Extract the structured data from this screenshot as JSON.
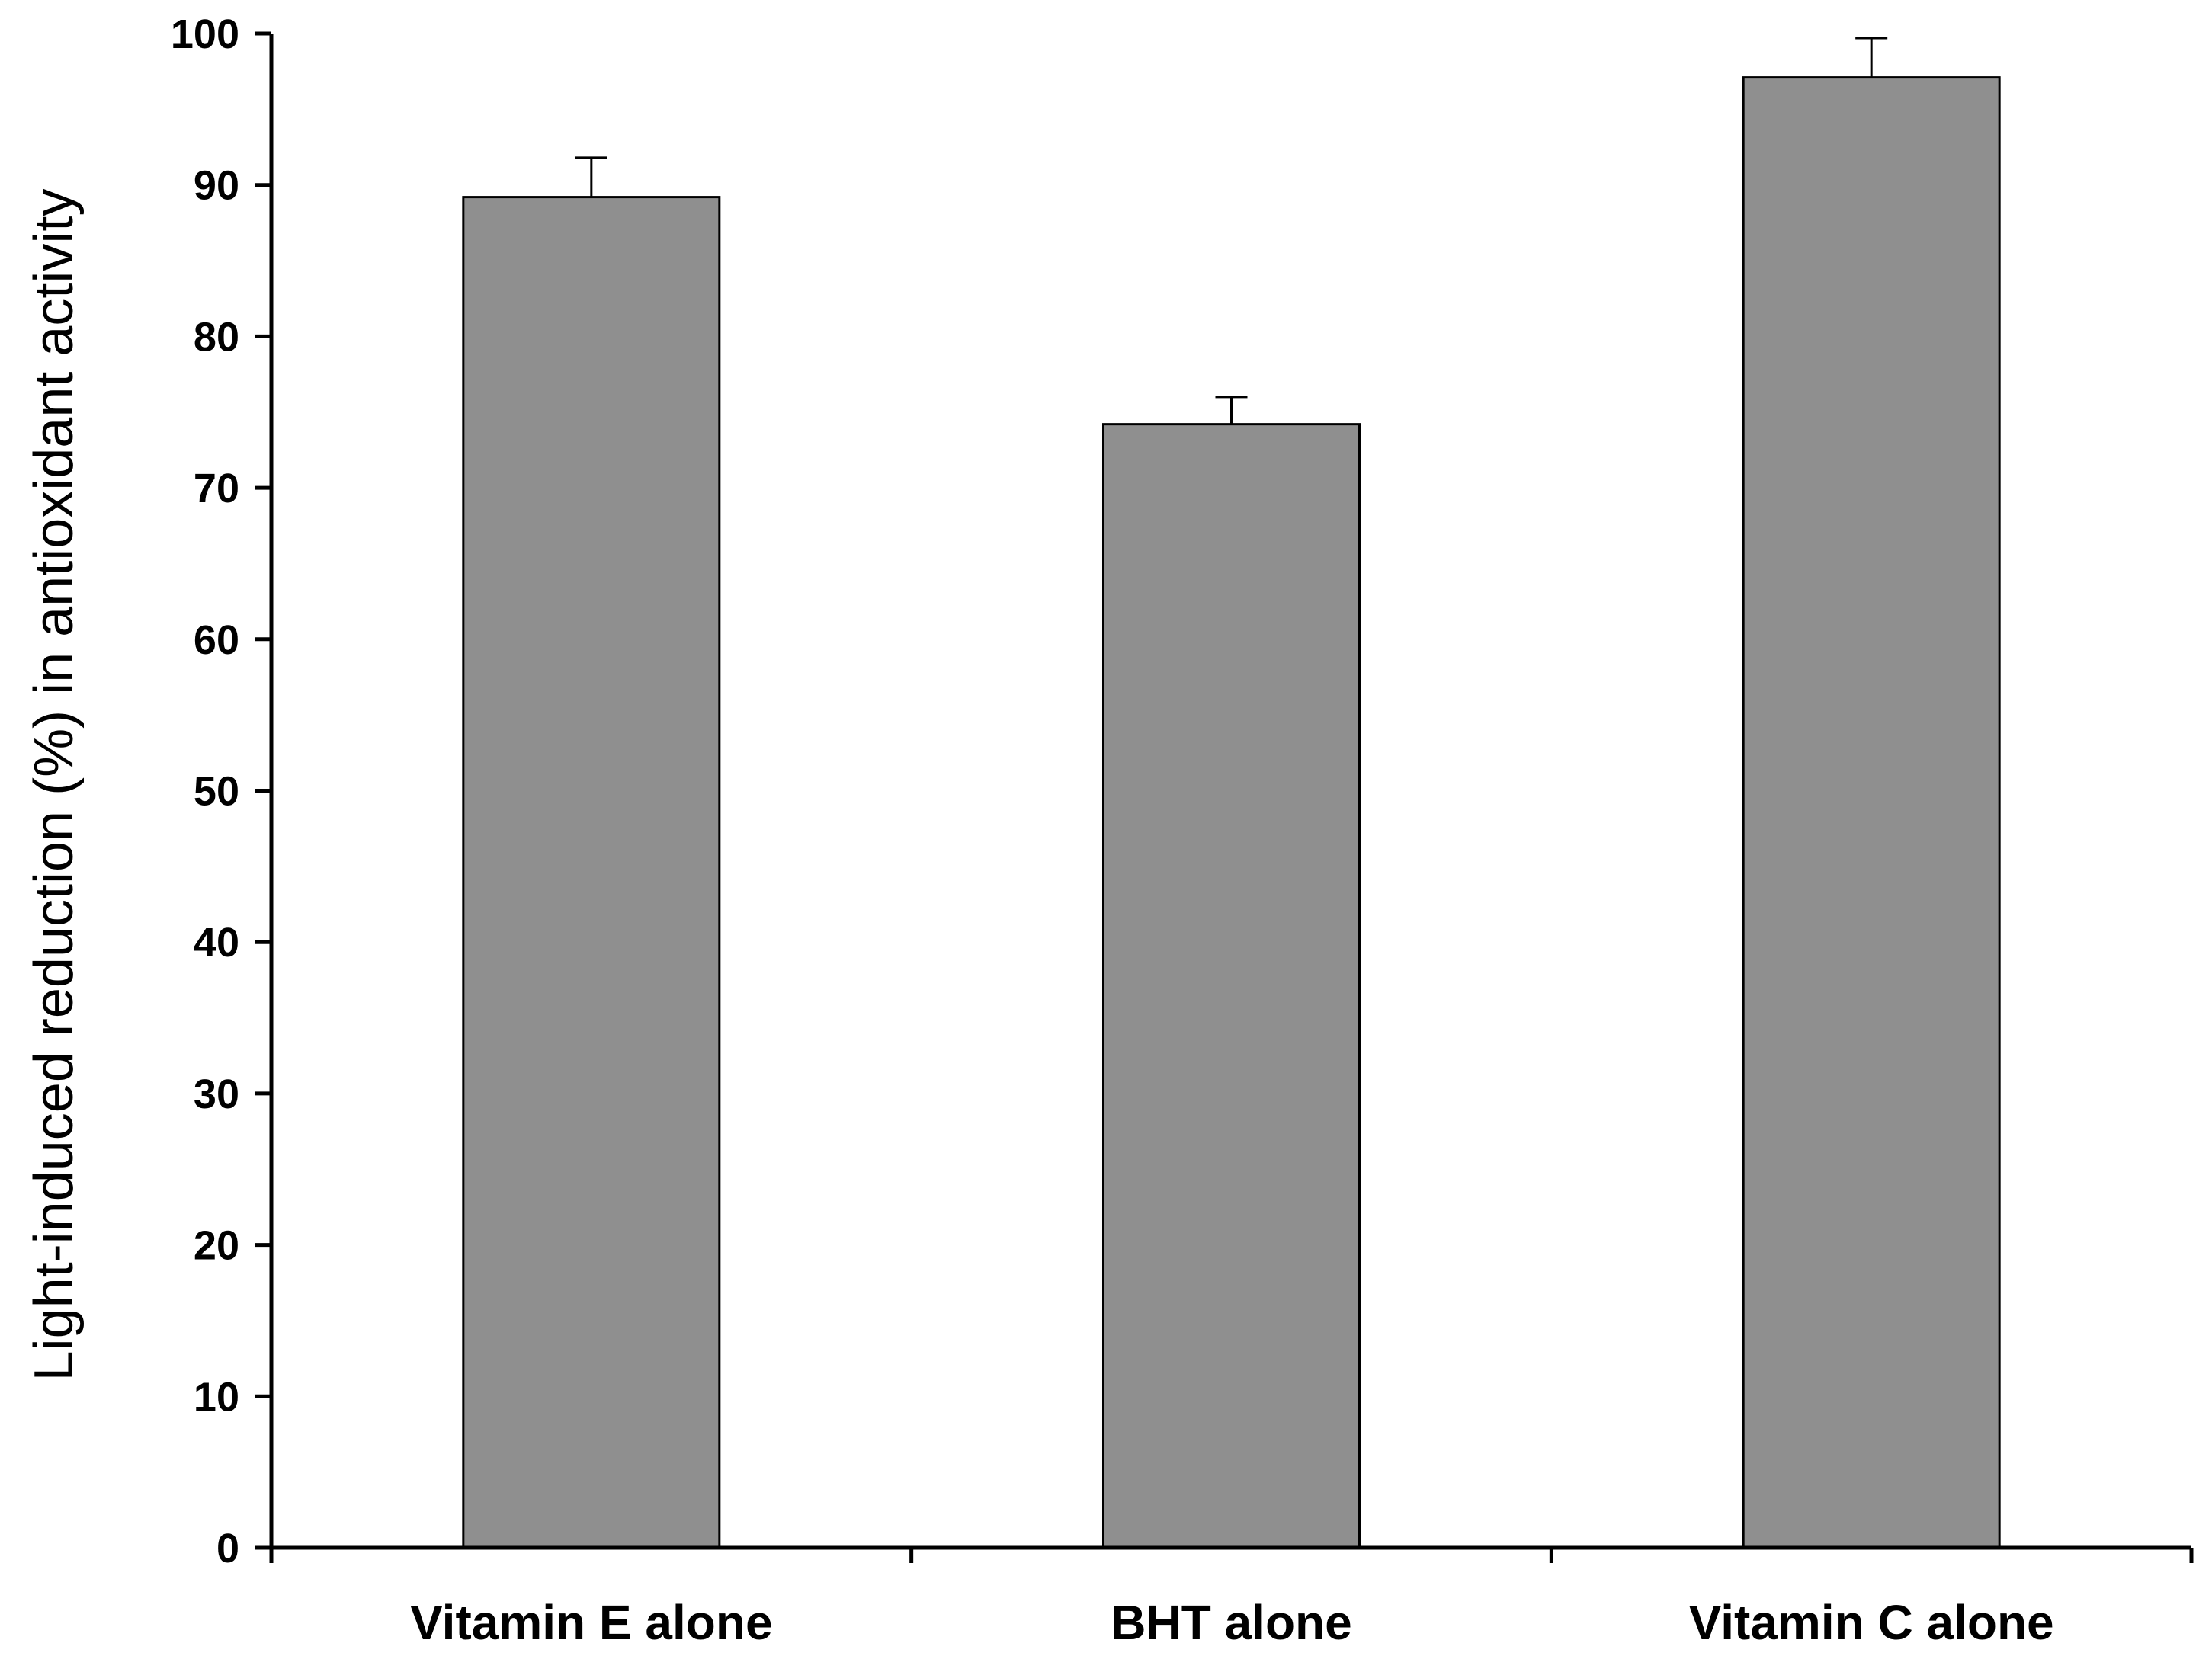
{
  "chart_data": {
    "type": "bar",
    "title": "",
    "xlabel": "",
    "ylabel": "Light-induced reduction (%) in antioxidant activity",
    "categories": [
      "Vitamin E alone",
      "BHT alone",
      "Vitamin C alone"
    ],
    "values": [
      89.2,
      74.2,
      97.1
    ],
    "error_bars": [
      2.6,
      1.8,
      2.6
    ],
    "ylim": [
      0,
      100
    ],
    "yticks": [
      0,
      10,
      20,
      30,
      40,
      50,
      60,
      70,
      80,
      90,
      100
    ],
    "grid": false,
    "legend": "none",
    "colors": {
      "bar_fill": "#8f8f8f",
      "bar_stroke": "#000000",
      "axis": "#000000",
      "text": "#000000"
    }
  }
}
